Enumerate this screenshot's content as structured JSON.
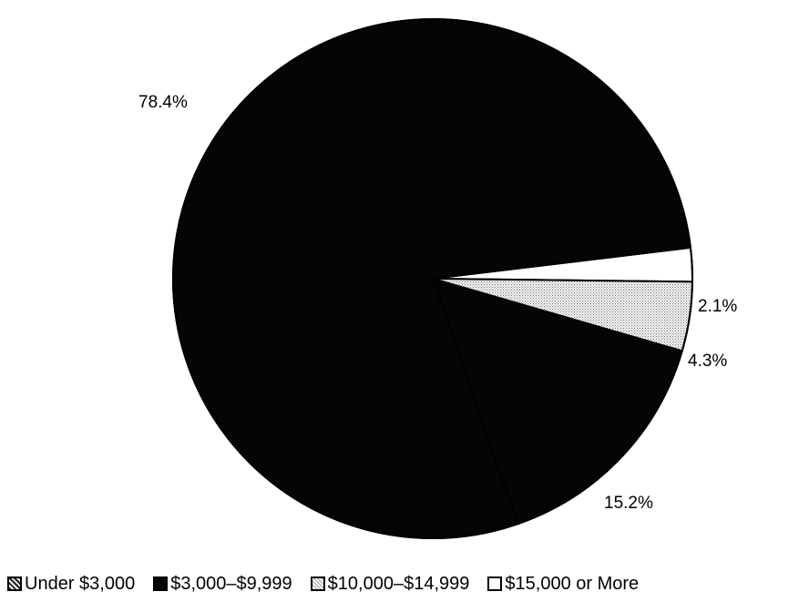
{
  "chart_data": {
    "type": "pie",
    "slices": [
      {
        "name": "Under $3,000",
        "value": 15.2,
        "label": "15.2%",
        "color": "#050505"
      },
      {
        "name": "$3,000–$9,999",
        "value": 78.4,
        "label": "78.4%",
        "color": "#050505"
      },
      {
        "name": "$10,000–$14,999",
        "value": 4.3,
        "label": "4.3%",
        "color": "#d2d2d2"
      },
      {
        "name": "$15,000 or More",
        "value": 2.1,
        "label": "2.1%",
        "color": "#ffffff"
      }
    ],
    "legend": [
      {
        "label": "Under $3,000"
      },
      {
        "label": "$3,000–$9,999"
      },
      {
        "label": "$10,000–$14,999"
      },
      {
        "label": "$15,000 or More"
      }
    ],
    "legend_position": "bottom"
  }
}
